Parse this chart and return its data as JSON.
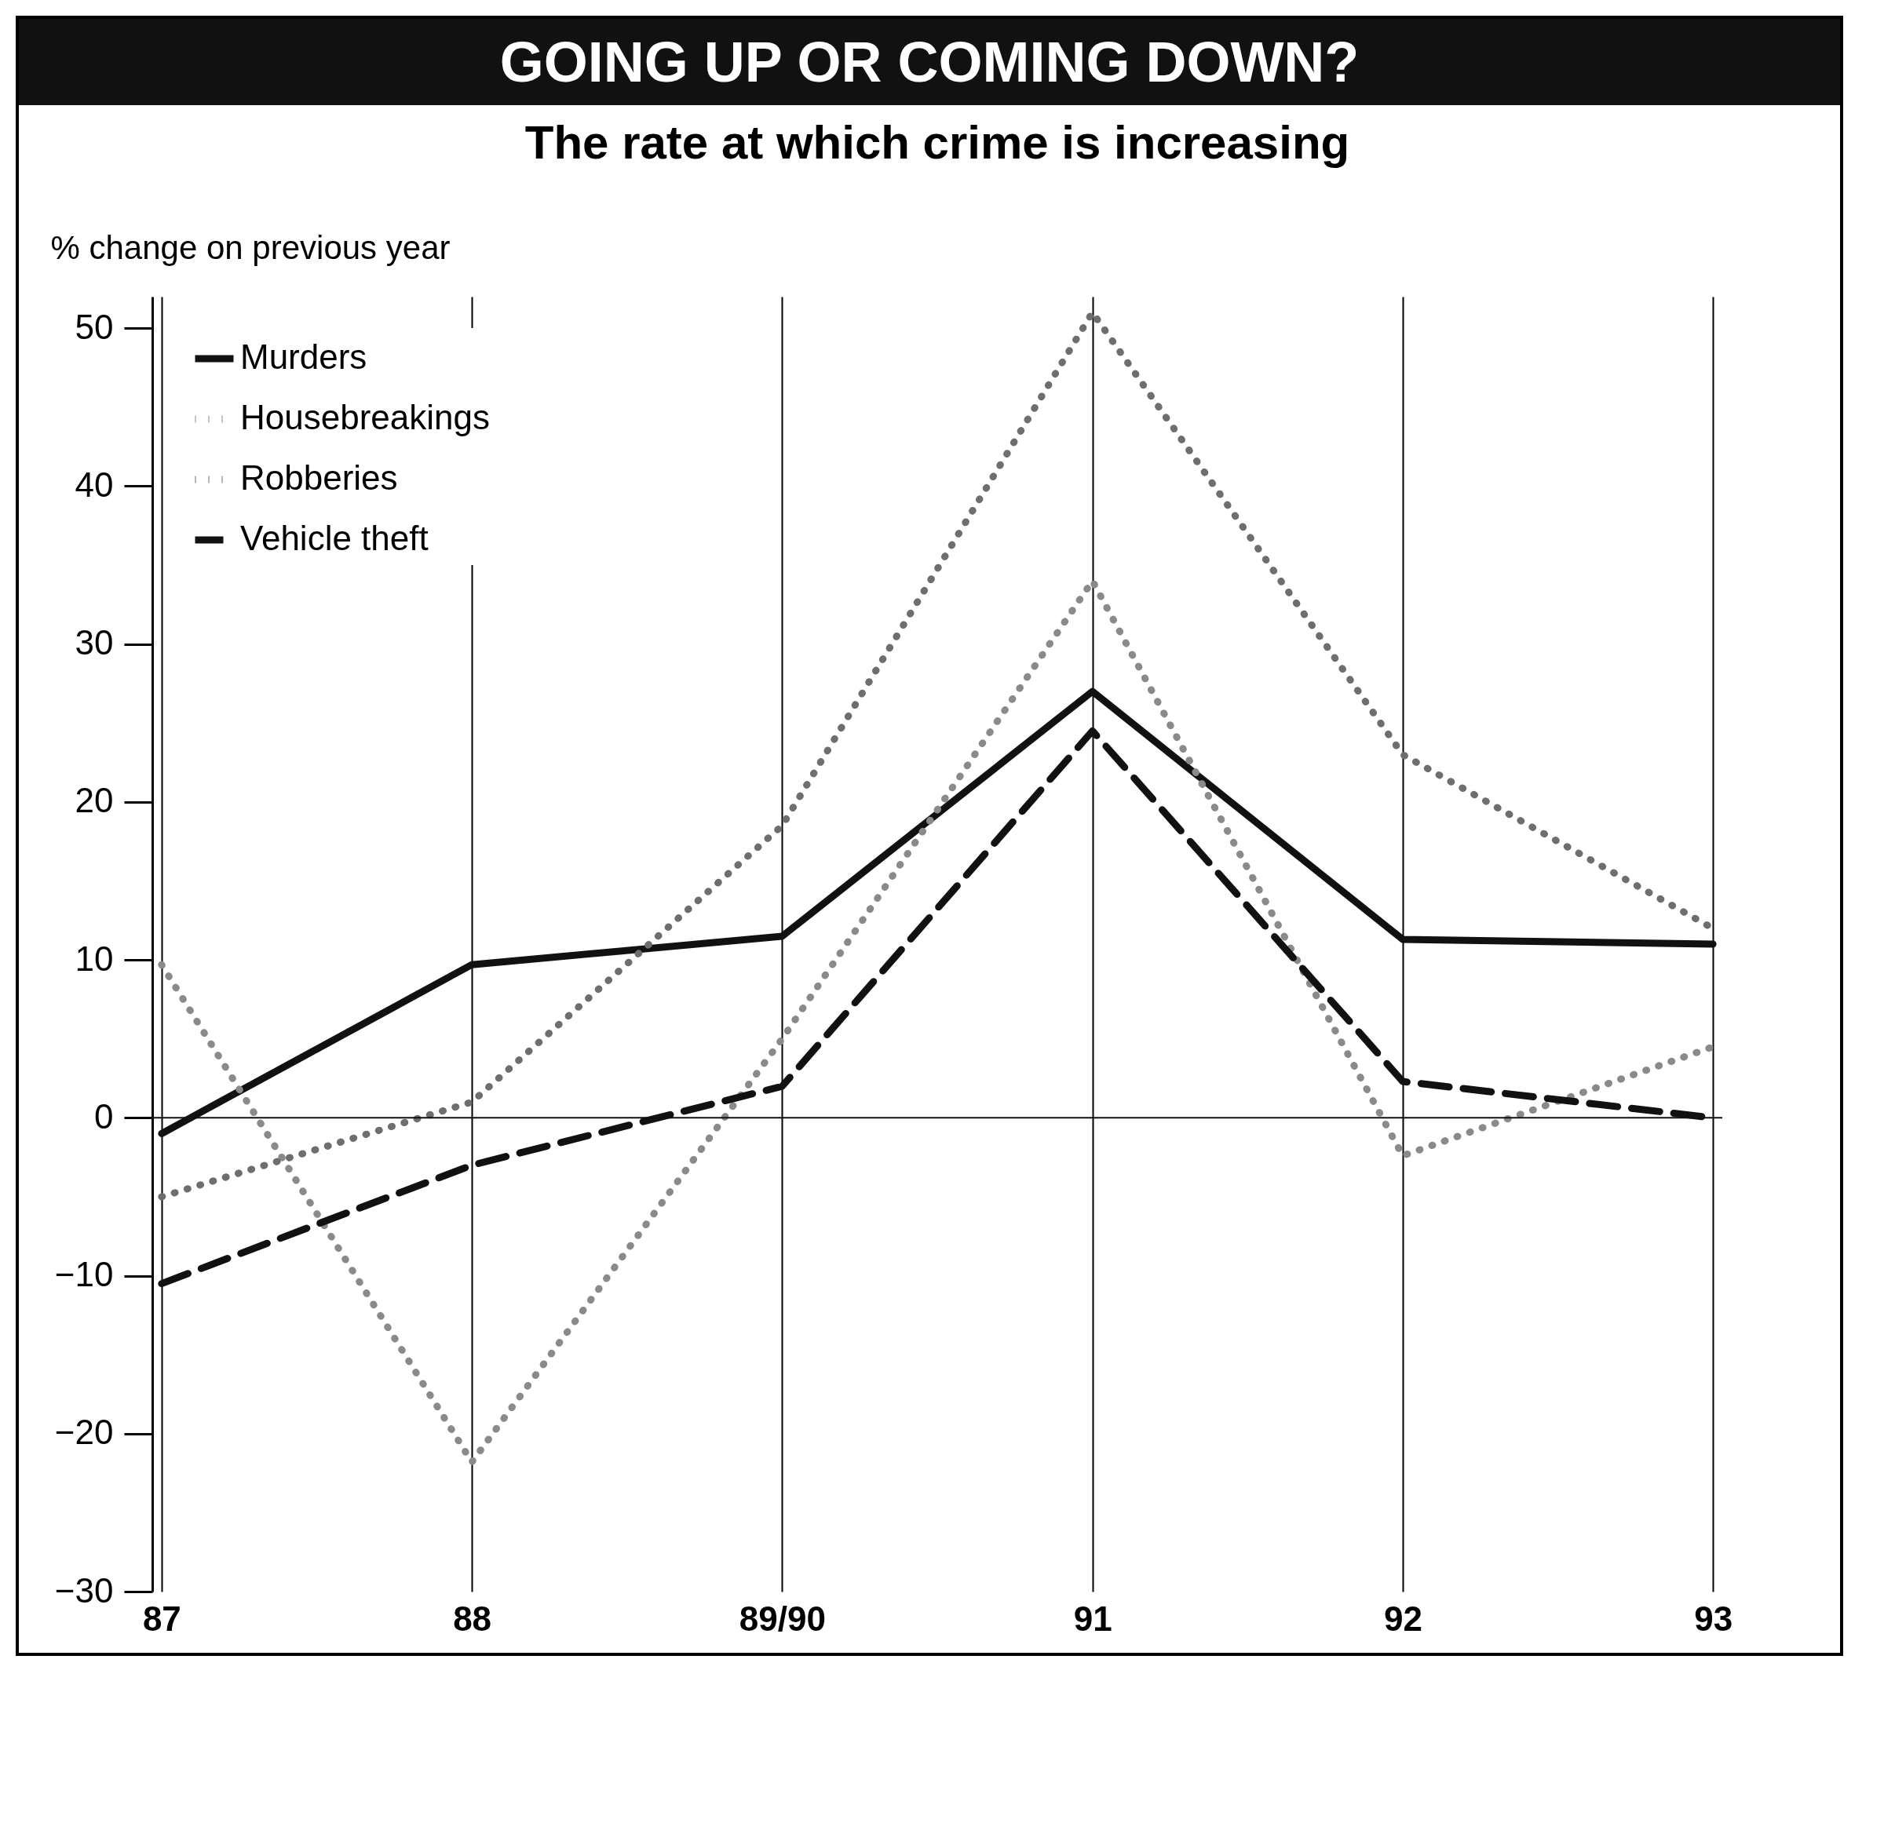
{
  "chart_data": {
    "type": "line",
    "title": "GOING UP OR COMING DOWN?",
    "subtitle": "The rate at which crime is increasing",
    "ylabel": "% change on previous year",
    "categories": [
      "87",
      "88",
      "89/90",
      "91",
      "92",
      "93"
    ],
    "series": [
      {
        "name": "Murders",
        "color": "#111111",
        "line_style": "solid",
        "values": [
          -1,
          9.7,
          11.5,
          27,
          11.3,
          11
        ]
      },
      {
        "name": "Housebreakings",
        "color": "#8a8a8a",
        "line_style": "dotted",
        "values": [
          9.7,
          -21.8,
          5,
          34,
          -2.4,
          4.5
        ]
      },
      {
        "name": "Robberies",
        "color": "#6e6e6e",
        "line_style": "dotted",
        "values": [
          -5,
          1,
          18.5,
          51,
          23,
          12
        ]
      },
      {
        "name": "Vehicle theft",
        "color": "#111111",
        "line_style": "dashed",
        "values": [
          -10.5,
          -3,
          2,
          24.5,
          2.3,
          0
        ]
      }
    ],
    "ylim": [
      -30,
      52
    ],
    "yticks": [
      -30,
      -20,
      -10,
      0,
      10,
      20,
      30,
      40,
      50
    ],
    "ref_lines": [
      {
        "axis": "y",
        "value": 0,
        "color": "#111111"
      }
    ],
    "grid": "x",
    "legend": "top left"
  }
}
